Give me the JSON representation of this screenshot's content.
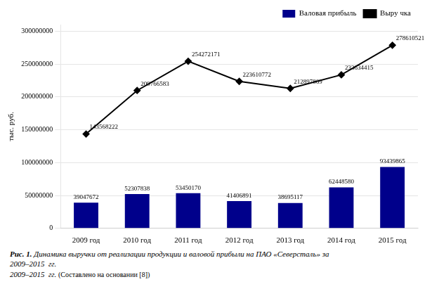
{
  "chart_data": {
    "type": "bar",
    "categories": [
      "2009 год",
      "2010 год",
      "2011 год",
      "2012 год",
      "2013 год",
      "2014 год",
      "2015 год"
    ],
    "series": [
      {
        "name": "Валовая\nприбыль",
        "type": "bar",
        "color": "#00008B",
        "values": [
          39047672,
          52307838,
          53450170,
          41406891,
          38695117,
          62448580,
          93439865
        ]
      },
      {
        "name": "Выру чка",
        "type": "line",
        "color": "#000000",
        "marker": "diamond",
        "values": [
          143568222,
          209766583,
          254272171,
          223610772,
          212897869,
          233634415,
          278610521
        ]
      }
    ],
    "ylabel": "тыс. руб.",
    "ylim": [
      0,
      310000000
    ],
    "yticks": [
      0,
      50000000,
      100000000,
      150000000,
      200000000,
      250000000,
      300000000
    ],
    "grid": true,
    "legend": "upper right",
    "data_labels": true,
    "annotations": [
      "Рис. 1.",
      "Динамика выручки от реализации продукции и валовой прибыли на ПАО «Северсталь» за\n2009–2015  гг.",
      "2009–2015  гг.",
      "(Составлено на основании [8])"
    ]
  }
}
